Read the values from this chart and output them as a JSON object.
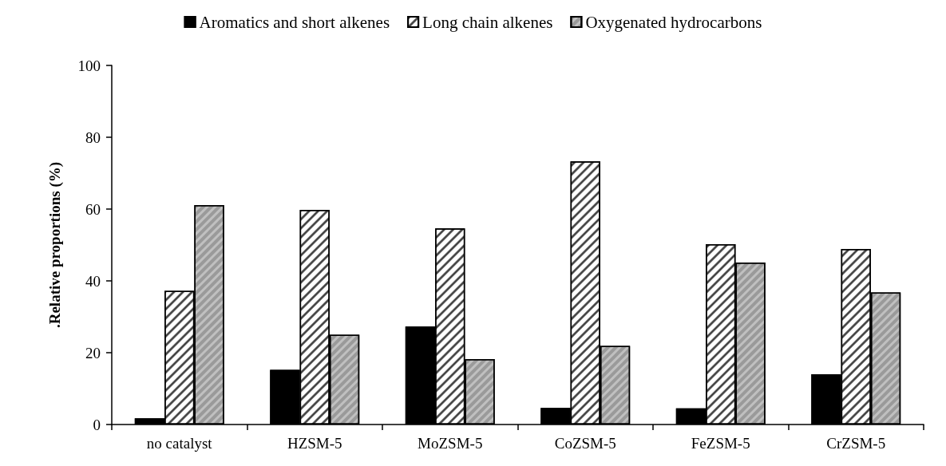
{
  "chart_data": {
    "type": "bar",
    "ylabel": ".Relative proportions (%)",
    "categories": [
      "no catalyst",
      "HZSM-5",
      "MoZSM-5",
      "CoZSM-5",
      "FeZSM-5",
      "CrZSM-5"
    ],
    "series": [
      {
        "name": "Aromatics and short alkenes",
        "color": "#000000",
        "values": [
          1.7,
          15.2,
          27.3,
          4.6,
          4.5,
          14.0
        ]
      },
      {
        "name": "Long chain alkenes",
        "color": "#ffffff",
        "values": [
          37.2,
          59.8,
          54.6,
          73.3,
          50.2,
          48.9
        ]
      },
      {
        "name": "Oxygenated hydrocarbons",
        "color": "#c0c0c0",
        "values": [
          61.1,
          25.0,
          18.2,
          21.9,
          45.1,
          36.8
        ]
      }
    ],
    "ylim": [
      0,
      100
    ],
    "yticks": [
      0,
      20,
      40,
      60,
      80,
      100
    ],
    "grid": false,
    "legend": "top"
  }
}
